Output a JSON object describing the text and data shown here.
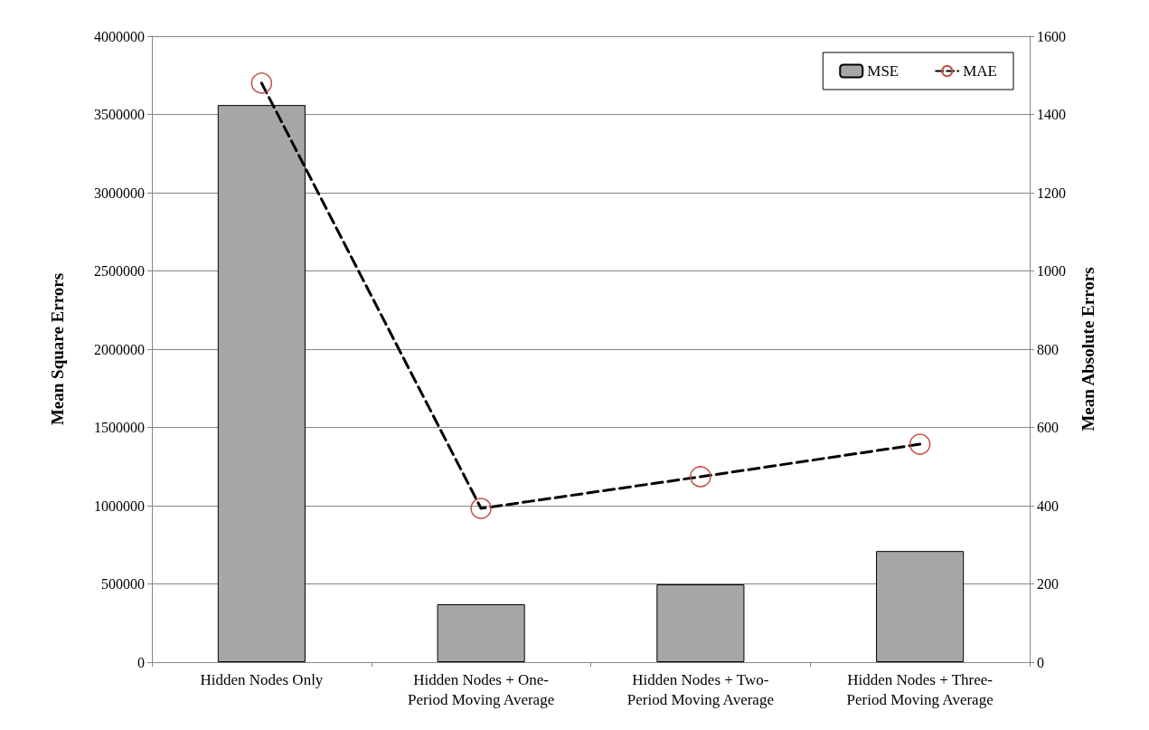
{
  "chart_data": {
    "type": "bar",
    "categories": [
      "Hidden Nodes Only",
      "Hidden Nodes + One-\nPeriod Moving Average",
      "Hidden Nodes + Two-\nPeriod Moving Average",
      "Hidden Nodes + Three-\nPeriod Moving Average"
    ],
    "series": [
      {
        "name": "MSE",
        "color": "#a6a6a6",
        "values": [
          3560000,
          370000,
          497000,
          710000
        ]
      },
      {
        "name": "MAE",
        "type": "line",
        "axis": "y2",
        "color": "#000000",
        "colors": [
          "#c0504d",
          "#c0504d",
          "#c0504d",
          "#c0504d"
        ],
        "values": [
          1480,
          393,
          474,
          557
        ]
      }
    ],
    "ylabel": "Mean Square Errors",
    "y2label": "Mean Absolute Errors",
    "ylim": [
      0,
      4000000
    ],
    "yticks": [
      0,
      500000,
      1000000,
      1500000,
      2000000,
      2500000,
      3000000,
      3500000,
      4000000
    ],
    "y2lim": [
      0,
      1600
    ],
    "y2ticks": [
      0,
      200,
      400,
      600,
      800,
      1000,
      1200,
      1400,
      1600
    ],
    "grid": "y",
    "legend": "top right",
    "marker": "circle",
    "line_style": "dashed"
  }
}
